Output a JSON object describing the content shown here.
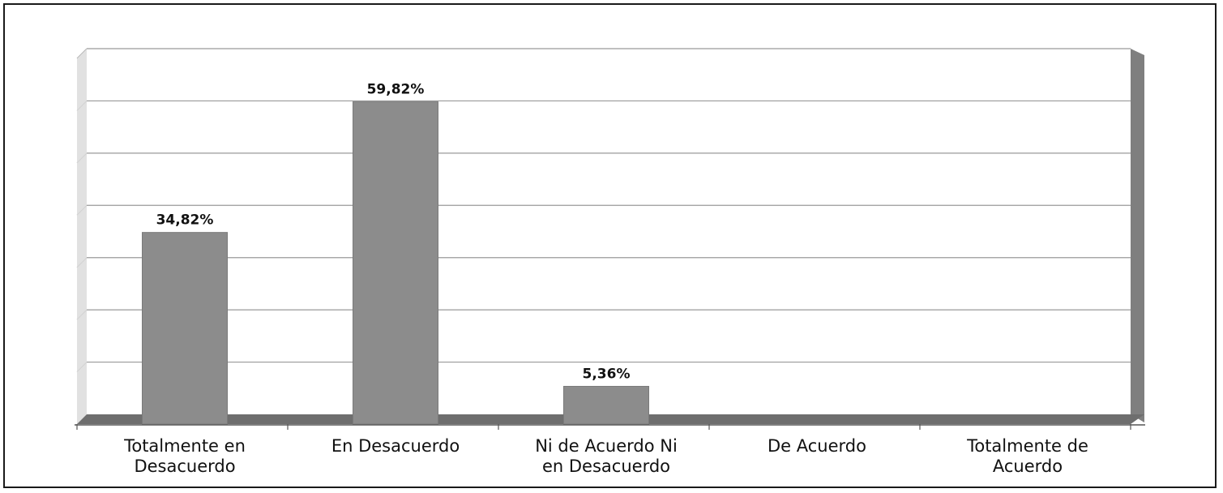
{
  "chart_data": {
    "type": "bar",
    "categories": [
      [
        "Totalmente en",
        "Desacuerdo"
      ],
      [
        "En Desacuerdo"
      ],
      [
        "Ni de Acuerdo Ni",
        "en Desacuerdo"
      ],
      [
        "De Acuerdo"
      ],
      [
        "Totalmente de",
        "Acuerdo"
      ]
    ],
    "values": [
      34.82,
      59.82,
      5.36,
      0,
      0
    ],
    "data_labels": [
      "34,82%",
      "59,82%",
      "5,36%",
      "",
      ""
    ],
    "title": "",
    "xlabel": "",
    "ylabel": "",
    "ylim": [
      0,
      70
    ],
    "grid": true,
    "legend": "none",
    "bar_color": "#8c8c8c",
    "floor_color": "#6e6e6e",
    "right_wall_color": "#7f7f7f",
    "left_wall_color": "#dcdcdc",
    "gridline_color": "#9a9a9a"
  }
}
